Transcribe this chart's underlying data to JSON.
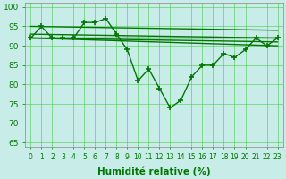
{
  "x": [
    0,
    1,
    2,
    3,
    4,
    5,
    6,
    7,
    8,
    9,
    10,
    11,
    12,
    13,
    14,
    15,
    16,
    17,
    18,
    19,
    20,
    21,
    22,
    23
  ],
  "main_y": [
    92,
    95,
    92,
    92,
    92,
    96,
    96,
    97,
    93,
    89,
    81,
    84,
    79,
    74,
    76,
    82,
    85,
    85,
    88,
    87,
    89,
    92,
    90,
    92
  ],
  "trend_lines": [
    [
      92,
      92
    ],
    [
      92,
      91
    ],
    [
      92,
      90
    ],
    [
      92,
      93
    ],
    [
      95,
      94
    ]
  ],
  "ylabel_ticks": [
    65,
    70,
    75,
    80,
    85,
    90,
    95,
    100
  ],
  "xlabel": "Humidité relative (%)",
  "xlim": [
    -0.5,
    23.5
  ],
  "ylim": [
    64,
    101
  ],
  "bg_color": "#c8ede8",
  "grid_color": "#44cc44",
  "line_color": "#007700",
  "line_width": 1.0,
  "marker_size": 4,
  "tick_fontsize": 5.5,
  "xlabel_fontsize": 7.5
}
